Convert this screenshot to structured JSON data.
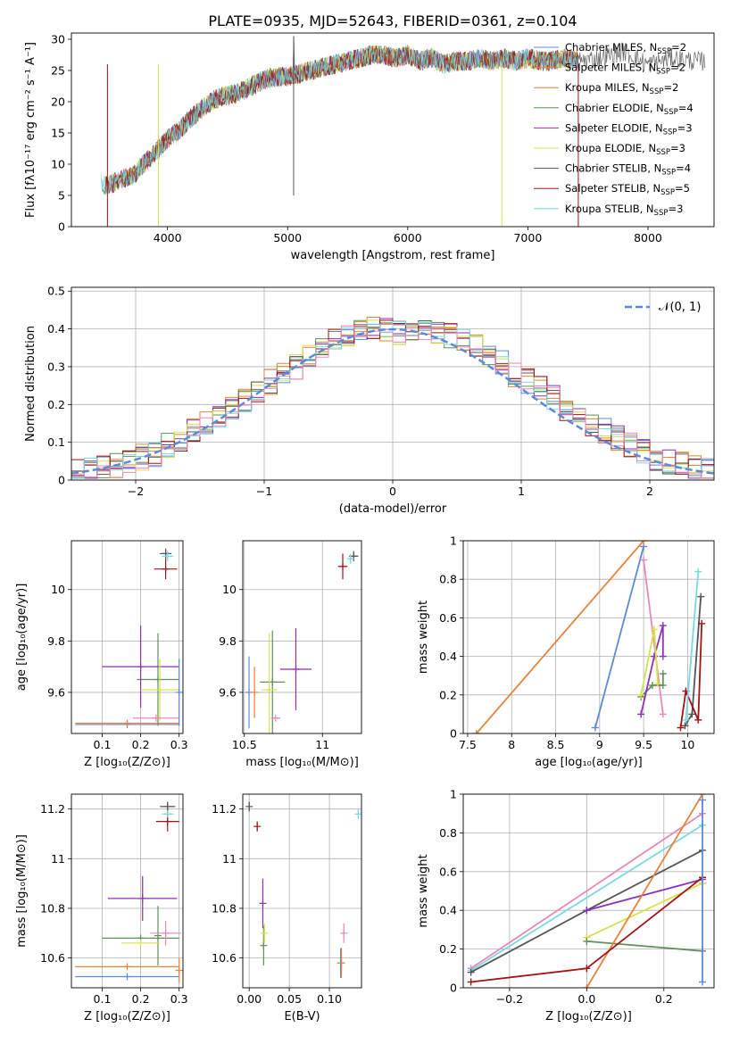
{
  "figure_title": "PLATE=0935, MJD=52643, FIBERID=0361, z=0.104",
  "colors": {
    "grid": "#b0b0b0",
    "chabrier_miles": "#5b8ad9",
    "salpeter_miles": "#e8823a",
    "kroupa_miles": "#d9892f",
    "chabrier_elodie": "#5f8f5a",
    "salpeter_elodie": "#8e2fb5",
    "kroupa_elodie": "#d8e04a",
    "chabrier_stelib": "#555555",
    "salpeter_stelib": "#a31313",
    "kroupa_stelib": "#79d9e0",
    "pink": "#e888b8"
  },
  "chart_data": [
    {
      "id": "spectrum",
      "type": "line",
      "title": "",
      "xlabel": "wavelength [Angstrom, rest frame]",
      "ylabel": "Flux [fλ10⁻¹⁷ erg cm⁻² s⁻¹ A⁻¹]",
      "xlim": [
        3200,
        8550
      ],
      "ylim": [
        0,
        31
      ],
      "xticks": [
        4000,
        5000,
        6000,
        7000,
        8000
      ],
      "yticks": [
        0,
        5,
        10,
        15,
        20,
        25,
        30
      ],
      "grid": false,
      "legend_position": "top-right",
      "x": [
        3450,
        3500,
        3600,
        3700,
        3800,
        3900,
        4000,
        4100,
        4200,
        4300,
        4400,
        4500,
        4600,
        4700,
        4800,
        4900,
        5000,
        5100,
        5200,
        5300,
        5400,
        5500,
        5600,
        5700,
        5800,
        5900,
        6000,
        6100,
        6200,
        6300,
        6400,
        6500,
        6600,
        6700,
        6800,
        6900,
        7000,
        7100,
        7200,
        7300,
        7400,
        7600,
        7800,
        8000,
        8200,
        8400
      ],
      "y": [
        7,
        6.5,
        7.5,
        8,
        10,
        12,
        14,
        15.5,
        17.5,
        19,
        20.5,
        21,
        21.5,
        22.5,
        23.5,
        24,
        24,
        24.5,
        25,
        25.5,
        26,
        26.5,
        27,
        27.5,
        27.5,
        27,
        27.5,
        26.5,
        27,
        26,
        26.5,
        26.5,
        27,
        26.5,
        27,
        26.5,
        27,
        26.5,
        26.5,
        27,
        26.5,
        27,
        28,
        26,
        27,
        26.5
      ],
      "features": [
        {
          "x": 5050,
          "y": 30.5
        },
        {
          "x": 6783,
          "y": 0.0
        },
        {
          "x": 7420,
          "y": 0.0
        },
        {
          "x": 3925,
          "y": 0.0
        },
        {
          "x": 3500,
          "y": 0.0
        }
      ],
      "series": [
        {
          "name": "Chabrier MILES, N$_{SSP}$=2",
          "label_main": "Chabrier MILES, N",
          "label_sub": "SSP",
          "label_end": "=2",
          "color_key": "chabrier_miles"
        },
        {
          "name": "Salpeter MILES, N$_{SSP}$=2",
          "label_main": "Salpeter MILES, N",
          "label_sub": "SSP",
          "label_end": "=2",
          "color_key": "salpeter_miles"
        },
        {
          "name": "Kroupa MILES, N$_{SSP}$=2",
          "label_main": "Kroupa MILES, N",
          "label_sub": "SSP",
          "label_end": "=2",
          "color_key": "kroupa_miles"
        },
        {
          "name": "Chabrier ELODIE, N$_{SSP}$=4",
          "label_main": "Chabrier ELODIE, N",
          "label_sub": "SSP",
          "label_end": "=4",
          "color_key": "chabrier_elodie"
        },
        {
          "name": "Salpeter ELODIE, N$_{SSP}$=3",
          "label_main": "Salpeter ELODIE, N",
          "label_sub": "SSP",
          "label_end": "=3",
          "color_key": "salpeter_elodie"
        },
        {
          "name": "Kroupa ELODIE, N$_{SSP}$=3",
          "label_main": "Kroupa ELODIE, N",
          "label_sub": "SSP",
          "label_end": "=3",
          "color_key": "kroupa_elodie"
        },
        {
          "name": "Chabrier STELIB, N$_{SSP}$=4",
          "label_main": "Chabrier STELIB, N",
          "label_sub": "SSP",
          "label_end": "=4",
          "color_key": "chabrier_stelib"
        },
        {
          "name": "Salpeter STELIB, N$_{SSP}$=5",
          "label_main": "Salpeter STELIB, N",
          "label_sub": "SSP",
          "label_end": "=5",
          "color_key": "salpeter_stelib"
        },
        {
          "name": "Kroupa STELIB, N$_{SSP}$=3",
          "label_main": "Kroupa STELIB, N",
          "label_sub": "SSP",
          "label_end": "=3",
          "color_key": "kroupa_stelib"
        }
      ]
    },
    {
      "id": "residuals",
      "type": "line",
      "xlabel": "(data-model)/error",
      "ylabel": "Normed distribution",
      "xlim": [
        -2.5,
        2.5
      ],
      "ylim": [
        0,
        0.51
      ],
      "xticks": [
        -2,
        -1,
        0,
        1,
        2
      ],
      "xticklabels": [
        "−2",
        "−1",
        "0",
        "1",
        "2"
      ],
      "yticks": [
        0,
        0.1,
        0.2,
        0.3,
        0.4,
        0.5
      ],
      "grid": true,
      "legend_position": "top-right",
      "legend_label": "𝒩(0, 1)",
      "bin_edges": [
        -2.5,
        -2.4,
        -2.3,
        -2.2,
        -2.1,
        -2.0,
        -1.9,
        -1.8,
        -1.7,
        -1.6,
        -1.5,
        -1.4,
        -1.3,
        -1.2,
        -1.1,
        -1.0,
        -0.9,
        -0.8,
        -0.7,
        -0.6,
        -0.5,
        -0.4,
        -0.3,
        -0.2,
        -0.1,
        0.0,
        0.1,
        0.2,
        0.3,
        0.4,
        0.5,
        0.6,
        0.7,
        0.8,
        0.9,
        1.0,
        1.1,
        1.2,
        1.3,
        1.4,
        1.5,
        1.6,
        1.7,
        1.8,
        1.9,
        2.0,
        2.1,
        2.2,
        2.3,
        2.4,
        2.5
      ],
      "hist_base": [
        0.02,
        0.025,
        0.03,
        0.04,
        0.05,
        0.06,
        0.07,
        0.09,
        0.11,
        0.13,
        0.15,
        0.17,
        0.19,
        0.21,
        0.24,
        0.26,
        0.28,
        0.3,
        0.33,
        0.35,
        0.37,
        0.38,
        0.39,
        0.4,
        0.4,
        0.39,
        0.4,
        0.4,
        0.39,
        0.38,
        0.37,
        0.35,
        0.33,
        0.31,
        0.28,
        0.26,
        0.24,
        0.22,
        0.19,
        0.17,
        0.15,
        0.13,
        0.11,
        0.09,
        0.08,
        0.06,
        0.05,
        0.04,
        0.03,
        0.025
      ],
      "gaussian": {
        "mu": 0,
        "sigma": 1
      }
    },
    {
      "id": "Z-age",
      "type": "scatter",
      "xlabel": "Z [log₁₀(Z/Z⊙)]",
      "ylabel": "age  [log₁₀(age/yr)]",
      "xlim": [
        0.02,
        0.31
      ],
      "ylim": [
        9.44,
        10.19
      ],
      "xticks": [
        0.1,
        0.2,
        0.3
      ],
      "yticks": [
        9.6,
        9.8,
        10.0
      ],
      "grid": true,
      "points": [
        {
          "x": 0.165,
          "y": 9.475,
          "xerr": 0.135,
          "yerr": 0,
          "color_key": "chabrier_miles"
        },
        {
          "x": 0.165,
          "y": 9.48,
          "xerr": 0.135,
          "yerr": 0,
          "color_key": "salpeter_miles"
        },
        {
          "x": 0.245,
          "y": 9.65,
          "xerr": 0.055,
          "yerr": 0.18,
          "color_key": "chabrier_elodie"
        },
        {
          "x": 0.2,
          "y": 9.7,
          "xerr": 0.1,
          "yerr": 0.16,
          "color_key": "salpeter_elodie"
        },
        {
          "x": 0.25,
          "y": 9.61,
          "xerr": 0.05,
          "yerr": 0.12,
          "color_key": "kroupa_elodie"
        },
        {
          "x": 0.265,
          "y": 10.14,
          "xerr": 0.015,
          "yerr": 0.02,
          "color_key": "chabrier_stelib"
        },
        {
          "x": 0.265,
          "y": 10.08,
          "xerr": 0.03,
          "yerr": 0.04,
          "color_key": "salpeter_stelib"
        },
        {
          "x": 0.27,
          "y": 10.13,
          "xerr": 0.015,
          "yerr": 0.02,
          "color_key": "kroupa_stelib"
        },
        {
          "x": 0.24,
          "y": 9.5,
          "xerr": 0.06,
          "yerr": 0,
          "color_key": "pink"
        },
        {
          "x": 0.3,
          "y": 9.6,
          "xerr": 0,
          "yerr": 0.13,
          "color_key": "chabrier_miles"
        }
      ]
    },
    {
      "id": "mass-age",
      "type": "scatter",
      "xlabel": "mass [log₁₀(M/M⊙)]",
      "ylabel": "",
      "xlim": [
        10.49,
        11.25
      ],
      "ylim": [
        9.44,
        10.19
      ],
      "xticks": [
        10.5,
        11.0
      ],
      "yticks": [
        9.6,
        9.8,
        10.0
      ],
      "grid": true,
      "points": [
        {
          "x": 10.53,
          "y": 9.6,
          "xerr": 0.0,
          "yerr": 0.14,
          "color_key": "chabrier_miles"
        },
        {
          "x": 10.565,
          "y": 9.6,
          "xerr": 0.0,
          "yerr": 0.1,
          "color_key": "salpeter_miles"
        },
        {
          "x": 10.68,
          "y": 9.64,
          "xerr": 0.08,
          "yerr": 0.2,
          "color_key": "chabrier_elodie"
        },
        {
          "x": 10.83,
          "y": 9.69,
          "xerr": 0.1,
          "yerr": 0.16,
          "color_key": "salpeter_elodie"
        },
        {
          "x": 10.66,
          "y": 9.61,
          "xerr": 0.05,
          "yerr": 0.22,
          "color_key": "kroupa_elodie"
        },
        {
          "x": 11.2,
          "y": 10.13,
          "xerr": 0.03,
          "yerr": 0.02,
          "color_key": "chabrier_stelib"
        },
        {
          "x": 11.13,
          "y": 10.09,
          "xerr": 0.03,
          "yerr": 0.05,
          "color_key": "salpeter_stelib"
        },
        {
          "x": 11.18,
          "y": 10.12,
          "xerr": 0.02,
          "yerr": 0.02,
          "color_key": "kroupa_stelib"
        },
        {
          "x": 10.7,
          "y": 9.5,
          "xerr": 0.03,
          "yerr": 0,
          "color_key": "pink"
        }
      ]
    },
    {
      "id": "age-weight",
      "type": "line",
      "xlabel": "age  [log₁₀(age/yr)]",
      "ylabel": "mass weight",
      "xlim": [
        7.45,
        10.3
      ],
      "ylim": [
        0,
        1.0
      ],
      "xticks": [
        7.5,
        8.0,
        8.5,
        9.0,
        9.5,
        10.0
      ],
      "yticks": [
        0,
        0.2,
        0.4,
        0.6,
        0.8,
        1.0
      ],
      "grid": true,
      "series": [
        {
          "color_key": "chabrier_miles",
          "x": [
            8.95,
            9.5
          ],
          "y": [
            0.03,
            0.97
          ]
        },
        {
          "color_key": "salpeter_miles",
          "x": [
            7.6,
            9.5
          ],
          "y": [
            0.0,
            1.0
          ]
        },
        {
          "color_key": "pink",
          "x": [
            9.5,
            9.72
          ],
          "y": [
            0.9,
            0.1
          ]
        },
        {
          "color_key": "chabrier_elodie",
          "x": [
            9.47,
            9.6,
            9.72,
            9.72
          ],
          "y": [
            0.19,
            0.25,
            0.25,
            0.31
          ]
        },
        {
          "color_key": "salpeter_elodie",
          "x": [
            9.47,
            9.62,
            9.72,
            9.72
          ],
          "y": [
            0.1,
            0.4,
            0.56,
            0.4
          ]
        },
        {
          "color_key": "kroupa_elodie",
          "x": [
            9.47,
            9.62,
            9.66
          ],
          "y": [
            0.2,
            0.54,
            0.26
          ]
        },
        {
          "color_key": "chabrier_stelib",
          "x": [
            9.97,
            10.05,
            10.15
          ],
          "y": [
            0.04,
            0.1,
            0.71
          ]
        },
        {
          "color_key": "salpeter_stelib",
          "x": [
            9.92,
            9.98,
            10.12,
            10.16
          ],
          "y": [
            0.03,
            0.22,
            0.07,
            0.57
          ]
        },
        {
          "color_key": "kroupa_stelib",
          "x": [
            9.98,
            10.12
          ],
          "y": [
            0.07,
            0.84
          ]
        }
      ]
    },
    {
      "id": "Z-mass",
      "type": "scatter",
      "xlabel": "Z [log₁₀(Z/Z⊙)]",
      "ylabel": "mass [log₁₀(M/M⊙)]",
      "xlim": [
        0.02,
        0.31
      ],
      "ylim": [
        10.48,
        11.26
      ],
      "xticks": [
        0.1,
        0.2,
        0.3
      ],
      "yticks": [
        10.6,
        10.8,
        11.0,
        11.2
      ],
      "grid": true,
      "points": [
        {
          "x": 0.165,
          "y": 10.525,
          "xerr": 0.135,
          "yerr": 0,
          "color_key": "chabrier_miles"
        },
        {
          "x": 0.165,
          "y": 10.565,
          "xerr": 0.135,
          "yerr": 0,
          "color_key": "salpeter_miles"
        },
        {
          "x": 0.2,
          "y": 10.68,
          "xerr": 0.1,
          "yerr": 0.0,
          "color_key": "chabrier_elodie"
        },
        {
          "x": 0.245,
          "y": 10.69,
          "xerr": 0.0,
          "yerr": 0.12,
          "color_key": "chabrier_elodie"
        },
        {
          "x": 0.205,
          "y": 10.84,
          "xerr": 0.09,
          "yerr": 0.09,
          "color_key": "salpeter_elodie"
        },
        {
          "x": 0.2,
          "y": 10.66,
          "xerr": 0.05,
          "yerr": 0.0,
          "color_key": "kroupa_elodie"
        },
        {
          "x": 0.27,
          "y": 11.21,
          "xerr": 0.02,
          "yerr": 0.02,
          "color_key": "chabrier_stelib"
        },
        {
          "x": 0.27,
          "y": 11.15,
          "xerr": 0.03,
          "yerr": 0.04,
          "color_key": "salpeter_stelib"
        },
        {
          "x": 0.27,
          "y": 11.18,
          "xerr": 0.015,
          "yerr": 0.0,
          "color_key": "kroupa_stelib"
        },
        {
          "x": 0.265,
          "y": 10.7,
          "xerr": 0.04,
          "yerr": 0.05,
          "color_key": "pink"
        },
        {
          "x": 0.3,
          "y": 10.55,
          "xerr": 0,
          "yerr": 0.05,
          "color_key": "salpeter_miles"
        }
      ]
    },
    {
      "id": "ebv-mass",
      "type": "scatter",
      "xlabel": "E(B-V)",
      "ylabel": "",
      "xlim": [
        -0.008,
        0.14
      ],
      "ylim": [
        10.48,
        11.26
      ],
      "xticks": [
        0.0,
        0.05,
        0.1
      ],
      "xticklabels": [
        "0.00",
        "0.05",
        "0.10"
      ],
      "yticks": [
        10.6,
        10.8,
        11.0,
        11.2
      ],
      "grid": true,
      "points": [
        {
          "x": 0.0,
          "y": 11.21,
          "xerr": 0,
          "yerr": 0.02,
          "color_key": "chabrier_stelib"
        },
        {
          "x": 0.01,
          "y": 11.13,
          "xerr": 0,
          "yerr": 0.02,
          "color_key": "salpeter_stelib"
        },
        {
          "x": 0.017,
          "y": 10.82,
          "xerr": 0,
          "yerr": 0.1,
          "color_key": "salpeter_elodie"
        },
        {
          "x": 0.018,
          "y": 10.65,
          "xerr": 0,
          "yerr": 0.08,
          "color_key": "chabrier_elodie"
        },
        {
          "x": 0.019,
          "y": 10.7,
          "xerr": 0,
          "yerr": 0.04,
          "color_key": "kroupa_elodie"
        },
        {
          "x": 0.114,
          "y": 10.58,
          "xerr": 0,
          "yerr": 0.06,
          "color_key": "chabrier_miles"
        },
        {
          "x": 0.115,
          "y": 10.58,
          "xerr": 0,
          "yerr": 0.06,
          "color_key": "salpeter_miles"
        },
        {
          "x": 0.118,
          "y": 10.7,
          "xerr": 0,
          "yerr": 0.04,
          "color_key": "pink"
        },
        {
          "x": 0.136,
          "y": 11.18,
          "xerr": 0,
          "yerr": 0.02,
          "color_key": "kroupa_stelib"
        }
      ]
    },
    {
      "id": "Z-weight",
      "type": "line",
      "xlabel": "Z [log₁₀(Z/Z⊙)]",
      "ylabel": "mass weight",
      "xlim": [
        -0.32,
        0.33
      ],
      "ylim": [
        0,
        1.0
      ],
      "xticks": [
        -0.2,
        0.0,
        0.2
      ],
      "xticklabels": [
        "−0.2",
        "0.0",
        "0.2"
      ],
      "yticks": [
        0,
        0.2,
        0.4,
        0.6,
        0.8,
        1.0
      ],
      "grid": true,
      "series": [
        {
          "color_key": "pink",
          "x": [
            -0.3,
            0.3
          ],
          "y": [
            0.1,
            0.9
          ]
        },
        {
          "color_key": "kroupa_stelib",
          "x": [
            -0.3,
            0.3
          ],
          "y": [
            0.09,
            0.84
          ]
        },
        {
          "color_key": "chabrier_stelib",
          "x": [
            -0.3,
            0.0,
            0.3
          ],
          "y": [
            0.08,
            0.4,
            0.71
          ]
        },
        {
          "color_key": "salpeter_elodie",
          "x": [
            0.0,
            0.3
          ],
          "y": [
            0.4,
            0.56
          ]
        },
        {
          "color_key": "kroupa_elodie",
          "x": [
            0.0,
            0.3
          ],
          "y": [
            0.26,
            0.54
          ]
        },
        {
          "color_key": "chabrier_elodie",
          "x": [
            0.0,
            0.3
          ],
          "y": [
            0.24,
            0.19
          ]
        },
        {
          "color_key": "salpeter_miles",
          "x": [
            0.0,
            0.3
          ],
          "y": [
            0.0,
            1.0
          ]
        },
        {
          "color_key": "salpeter_stelib",
          "x": [
            -0.3,
            0.0,
            0.3
          ],
          "y": [
            0.03,
            0.1,
            0.57
          ]
        },
        {
          "color_key": "chabrier_miles",
          "x": [
            0.3,
            0.3
          ],
          "y": [
            0.03,
            0.97
          ]
        }
      ]
    }
  ]
}
